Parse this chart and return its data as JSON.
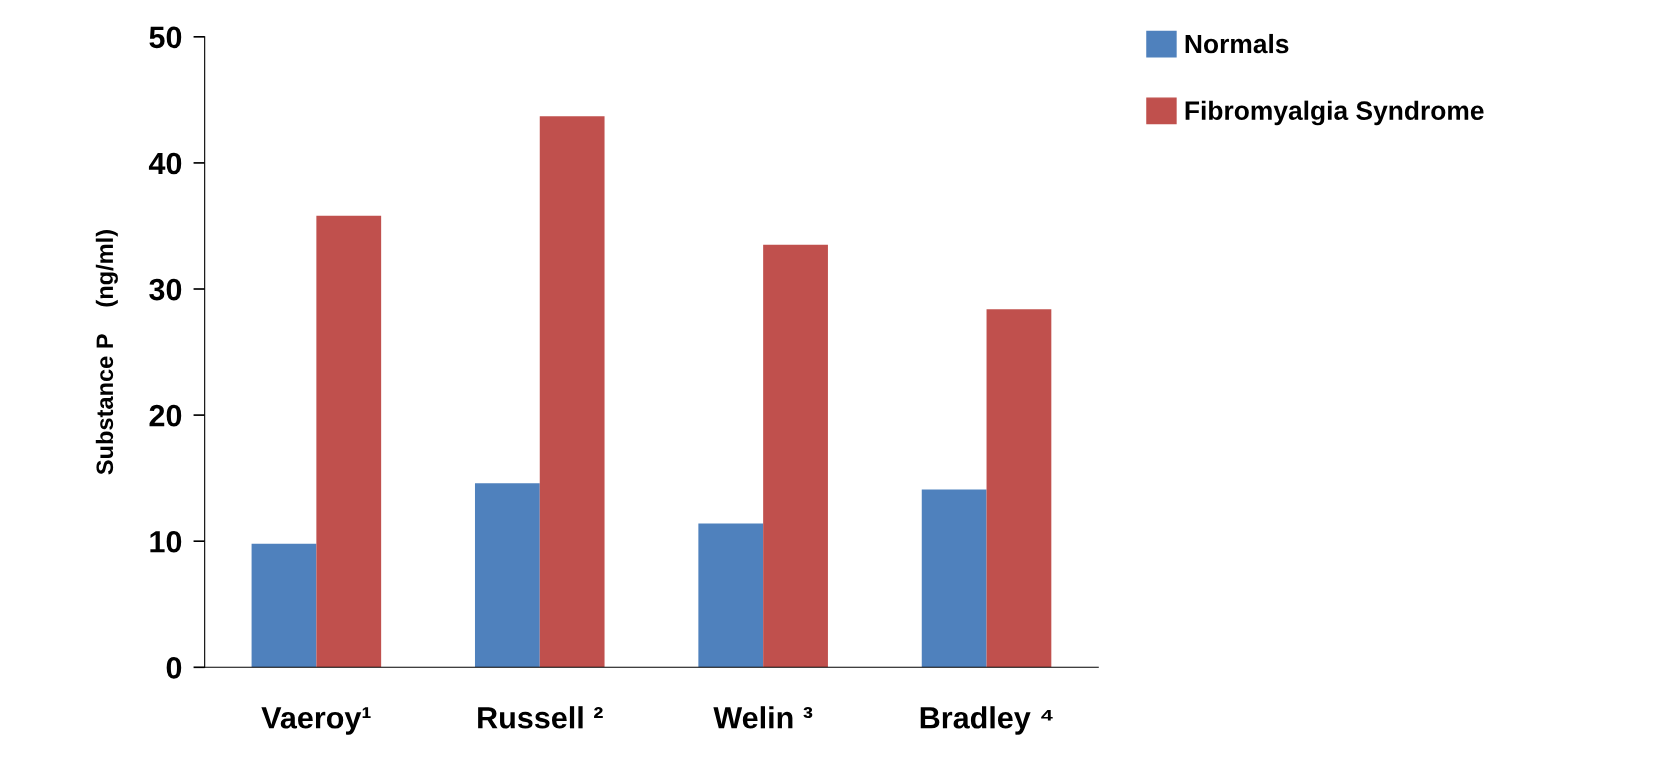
{
  "chart_data": {
    "type": "bar",
    "ylabel": "Substance P    (ng/ml)",
    "categories": [
      "Vaeroy¹",
      "Russell ²",
      "Welin ³",
      "Bradley ⁴"
    ],
    "series": [
      {
        "name": "Normals",
        "color": "#4f81bd",
        "values": [
          9.8,
          14.6,
          11.4,
          14.1
        ]
      },
      {
        "name": "Fibromyalgia Syndrome",
        "color": "#c0504d",
        "values": [
          35.8,
          43.7,
          33.5,
          28.4
        ]
      }
    ],
    "ylim": [
      0,
      50
    ],
    "yticks": [
      0,
      10,
      20,
      30,
      40,
      50
    ],
    "grid": false,
    "legend": "top right"
  }
}
